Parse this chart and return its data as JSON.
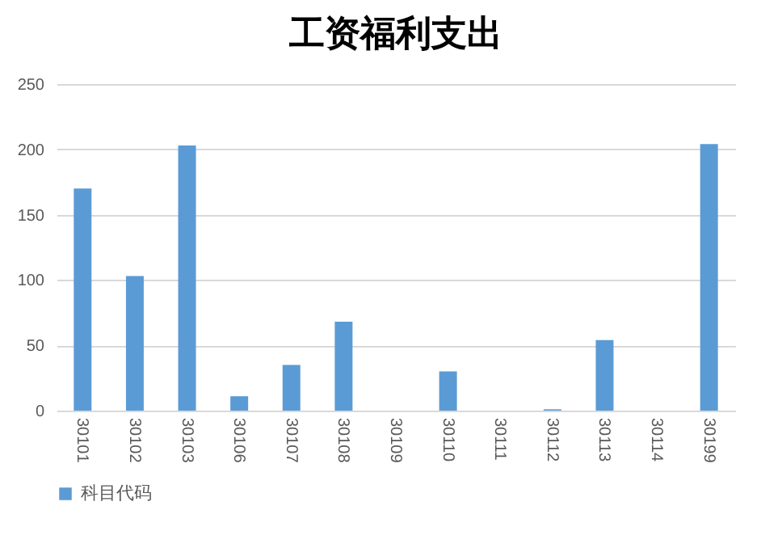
{
  "chart_data": {
    "type": "bar",
    "title": "工资福利支出",
    "categories": [
      "30101",
      "30102",
      "30103",
      "30106",
      "30107",
      "30108",
      "30109",
      "30110",
      "30111",
      "30112",
      "30113",
      "30114",
      "30199"
    ],
    "series": [
      {
        "name": "科目代码",
        "color": "#5b9bd5",
        "values": [
          170,
          103,
          203,
          11,
          35,
          68,
          0,
          30,
          0,
          1,
          54,
          0,
          204
        ]
      }
    ],
    "ylim": [
      0,
      250
    ],
    "yticks": [
      0,
      50,
      100,
      150,
      200,
      250
    ],
    "grid": "y",
    "legend": "bottom"
  }
}
